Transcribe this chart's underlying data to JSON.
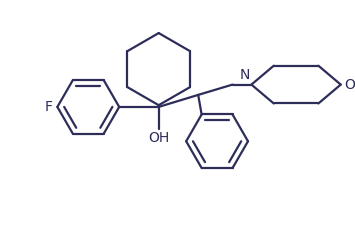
{
  "bg_color": "#ffffff",
  "line_color": "#2d2d5a",
  "line_width": 1.6,
  "font_size": 10,
  "figsize": [
    3.55,
    2.31
  ],
  "dpi": 100,
  "xlim": [
    0,
    10
  ],
  "ylim": [
    0,
    6.5
  ]
}
